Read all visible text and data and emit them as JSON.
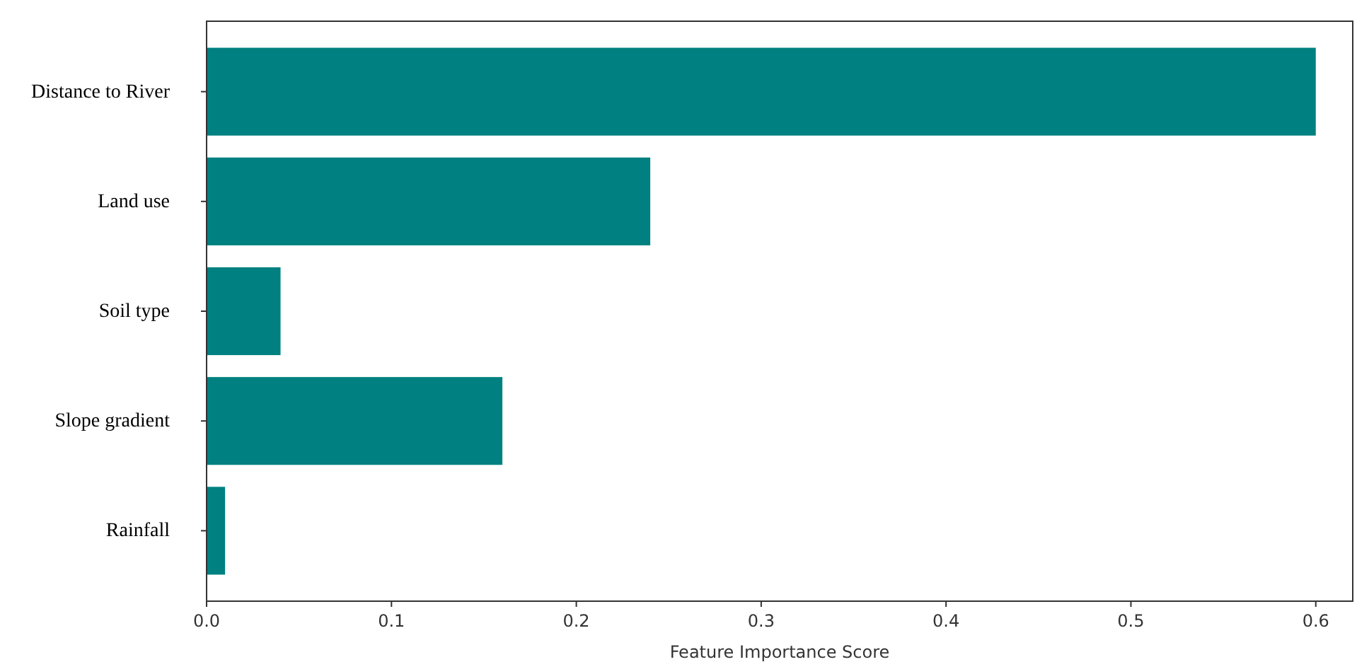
{
  "chart_data": {
    "type": "bar",
    "orientation": "horizontal",
    "xlabel": "Feature Importance Score",
    "categories": [
      "Distance to River",
      "Land use",
      "Soil type",
      "Slope gradient",
      "Rainfall"
    ],
    "values": [
      0.6,
      0.24,
      0.04,
      0.16,
      0.01
    ],
    "color": "#008080",
    "xlim": [
      0,
      0.62
    ],
    "xticks": [
      {
        "value": 0,
        "label": "0.0"
      },
      0.1,
      0.2,
      0.3,
      0.4,
      0.5,
      0.6
    ],
    "grid": false
  }
}
